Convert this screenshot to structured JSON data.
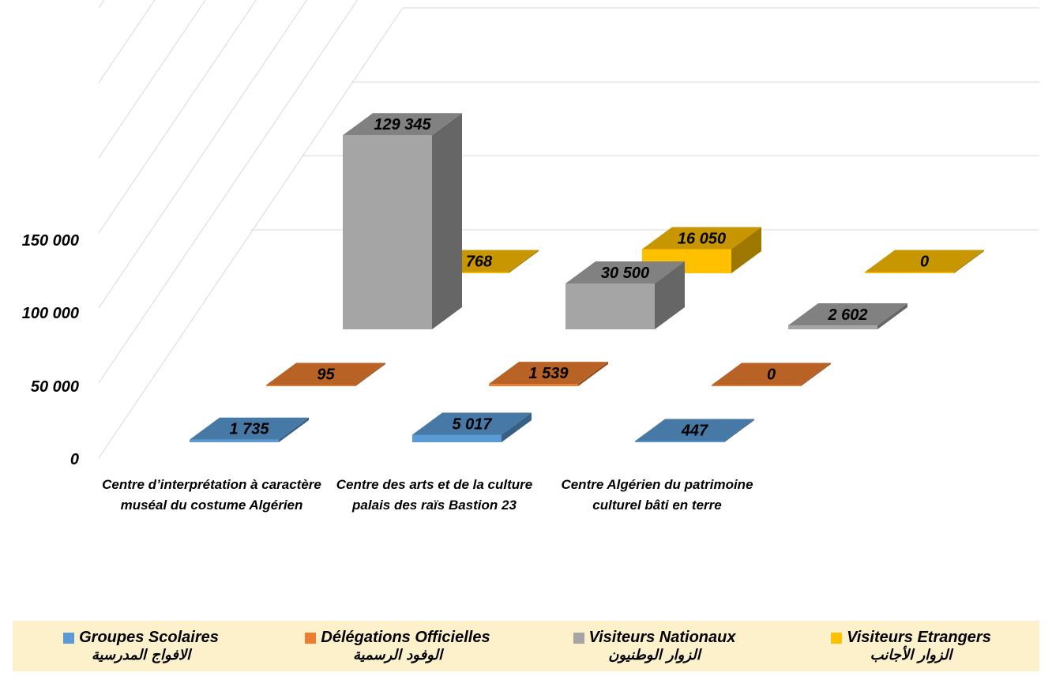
{
  "chart_data": {
    "type": "bar",
    "subtype": "3d-column",
    "categories": [
      "Centre d’interprétation à caractère muséal du costume Algérien",
      "Centre des arts et de la culture palais des raïs Bastion 23",
      "Centre Algérien du patrimoine culturel bâti en terre"
    ],
    "series": [
      {
        "name": "Groupes Scolaires",
        "name_ar": "الافواج المدرسية",
        "color": "#5b9bd5",
        "values": [
          1735,
          5017,
          447
        ],
        "labels": [
          "1 735",
          "5 017",
          "447"
        ]
      },
      {
        "name": "Délégations Officielles",
        "name_ar": "الوفود الرسمية",
        "color": "#ed7d31",
        "values": [
          95,
          1539,
          0
        ],
        "labels": [
          "95",
          "1 539",
          "0"
        ]
      },
      {
        "name": "Visiteurs Nationaux",
        "name_ar": "الزوار الوطنيون",
        "color": "#a5a5a5",
        "values": [
          129345,
          30500,
          2602
        ],
        "labels": [
          "129 345",
          "30 500",
          "2 602"
        ]
      },
      {
        "name": "Visiteurs Etrangers",
        "name_ar": "الزوار الأجانب",
        "color": "#ffc000",
        "values": [
          768,
          16050,
          0
        ],
        "labels": [
          "768",
          "16 050",
          "0"
        ]
      }
    ],
    "yticks": [
      "0",
      "50 000",
      "100 000",
      "150 000"
    ],
    "ylim": [
      0,
      150000
    ],
    "grid": true,
    "legend_position": "bottom"
  }
}
